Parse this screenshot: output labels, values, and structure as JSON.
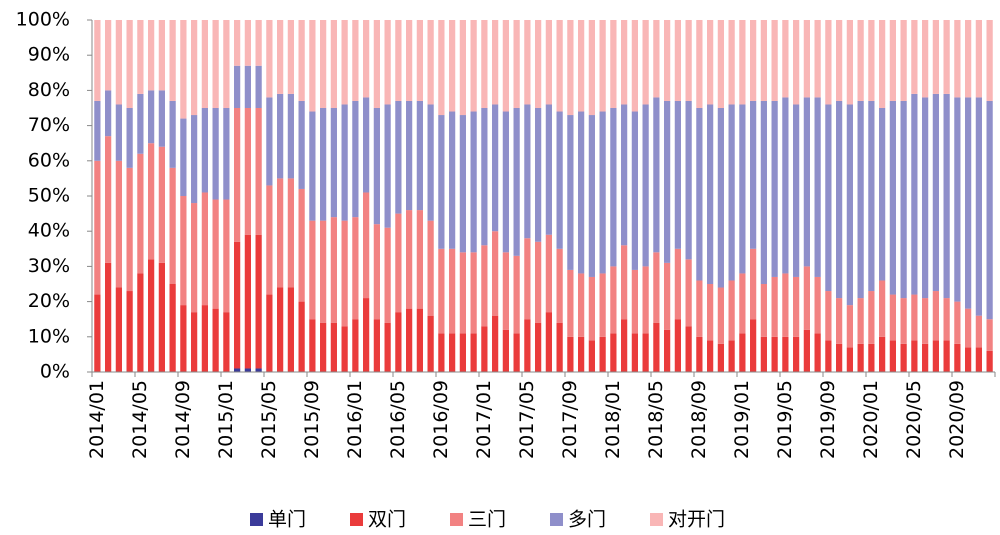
{
  "chart_data": {
    "type": "stacked_bar",
    "categories": [
      "2014/01",
      null,
      null,
      null,
      "2014/05",
      null,
      null,
      null,
      "2014/09",
      null,
      null,
      null,
      "2015/01",
      null,
      null,
      null,
      "2015/05",
      null,
      null,
      null,
      "2015/09",
      null,
      null,
      null,
      "2016/01",
      null,
      null,
      null,
      "2016/05",
      null,
      null,
      null,
      "2016/09",
      null,
      null,
      null,
      "2017/01",
      null,
      null,
      null,
      "2017/05",
      null,
      null,
      null,
      "2017/09",
      null,
      null,
      null,
      "2018/01",
      null,
      null,
      null,
      "2018/05",
      null,
      null,
      null,
      "2018/09",
      null,
      null,
      null,
      "2019/01",
      null,
      null,
      null,
      "2019/05",
      null,
      null,
      null,
      "2019/09",
      null,
      null,
      null,
      "2020/01",
      null,
      null,
      null,
      "2020/05",
      null,
      null,
      null,
      "2020/09",
      null,
      null,
      null
    ],
    "series": [
      {
        "name": "单门",
        "color": "#3b3b9a",
        "values": [
          0,
          0,
          0,
          0,
          0,
          0,
          0,
          0,
          0,
          0,
          0,
          0,
          0,
          1,
          1,
          1,
          0,
          0,
          0,
          0,
          0,
          0,
          0,
          0,
          0,
          0,
          0,
          0,
          0,
          0,
          0,
          0,
          0,
          0,
          0,
          0,
          0,
          0,
          0,
          0,
          0,
          0,
          0,
          0,
          0,
          0,
          0,
          0,
          0,
          0,
          0,
          0,
          0,
          0,
          0,
          0,
          0,
          0,
          0,
          0,
          0,
          0,
          0,
          0,
          0,
          0,
          0,
          0,
          0,
          0,
          0,
          0,
          0,
          0,
          0,
          0,
          0,
          0,
          0,
          0,
          0,
          0,
          0,
          0
        ]
      },
      {
        "name": "双门",
        "color": "#ea3b3b",
        "values": [
          22,
          31,
          24,
          23,
          28,
          32,
          31,
          25,
          19,
          17,
          19,
          18,
          17,
          36,
          38,
          38,
          22,
          24,
          24,
          20,
          15,
          14,
          14,
          13,
          15,
          21,
          15,
          14,
          17,
          18,
          18,
          16,
          11,
          11,
          11,
          11,
          13,
          16,
          12,
          11,
          15,
          14,
          17,
          14,
          10,
          10,
          9,
          10,
          11,
          15,
          11,
          11,
          14,
          12,
          15,
          13,
          10,
          9,
          8,
          9,
          11,
          15,
          10,
          10,
          10,
          10,
          12,
          11,
          9,
          8,
          7,
          8,
          8,
          10,
          9,
          8,
          9,
          8,
          9,
          9,
          8,
          7,
          7,
          6
        ]
      },
      {
        "name": "三门",
        "color": "#f28282",
        "values": [
          38,
          36,
          36,
          35,
          34,
          33,
          33,
          33,
          31,
          31,
          32,
          31,
          32,
          38,
          36,
          36,
          31,
          31,
          31,
          32,
          28,
          29,
          30,
          30,
          29,
          30,
          27,
          27,
          28,
          28,
          28,
          27,
          24,
          24,
          23,
          23,
          23,
          24,
          22,
          22,
          23,
          23,
          22,
          21,
          19,
          18,
          18,
          18,
          19,
          21,
          18,
          19,
          20,
          19,
          20,
          19,
          16,
          16,
          16,
          17,
          17,
          20,
          15,
          17,
          18,
          17,
          18,
          16,
          14,
          13,
          12,
          13,
          15,
          16,
          13,
          13,
          13,
          13,
          14,
          12,
          12,
          11,
          9,
          9
        ]
      },
      {
        "name": "多门",
        "color": "#8f8fca",
        "values": [
          17,
          13,
          16,
          17,
          17,
          15,
          16,
          19,
          22,
          25,
          24,
          26,
          26,
          12,
          12,
          12,
          25,
          24,
          24,
          25,
          31,
          32,
          31,
          33,
          33,
          27,
          33,
          35,
          32,
          31,
          31,
          33,
          38,
          39,
          39,
          40,
          39,
          36,
          40,
          42,
          38,
          38,
          37,
          39,
          44,
          46,
          46,
          46,
          45,
          40,
          45,
          46,
          44,
          46,
          42,
          45,
          49,
          51,
          51,
          50,
          48,
          42,
          52,
          50,
          50,
          49,
          48,
          51,
          53,
          56,
          57,
          56,
          54,
          49,
          55,
          56,
          57,
          57,
          56,
          58,
          58,
          60,
          62,
          62
        ]
      },
      {
        "name": "对开门",
        "color": "#f9b6b6",
        "values": [
          23,
          20,
          24,
          25,
          21,
          20,
          20,
          23,
          28,
          27,
          25,
          25,
          25,
          13,
          13,
          13,
          22,
          21,
          21,
          23,
          26,
          25,
          25,
          24,
          23,
          22,
          25,
          24,
          23,
          23,
          23,
          24,
          27,
          26,
          27,
          26,
          25,
          24,
          26,
          25,
          24,
          25,
          24,
          26,
          27,
          26,
          27,
          26,
          25,
          24,
          26,
          24,
          22,
          23,
          23,
          23,
          25,
          24,
          25,
          24,
          24,
          23,
          23,
          23,
          22,
          24,
          22,
          22,
          24,
          23,
          24,
          23,
          23,
          25,
          23,
          23,
          21,
          22,
          21,
          21,
          22,
          22,
          22,
          23
        ]
      }
    ],
    "ylim": [
      0,
      100
    ],
    "yticks": [
      {
        "value": 0,
        "label": "0%"
      },
      {
        "value": 10,
        "label": "10%"
      },
      {
        "value": 20,
        "label": "20%"
      },
      {
        "value": 30,
        "label": "30%"
      },
      {
        "value": 40,
        "label": "40%"
      },
      {
        "value": 50,
        "label": "50%"
      },
      {
        "value": 60,
        "label": "60%"
      },
      {
        "value": 70,
        "label": "70%"
      },
      {
        "value": 80,
        "label": "80%"
      },
      {
        "value": 90,
        "label": "90%"
      },
      {
        "value": 100,
        "label": "100%"
      }
    ],
    "legend": "bottom"
  }
}
